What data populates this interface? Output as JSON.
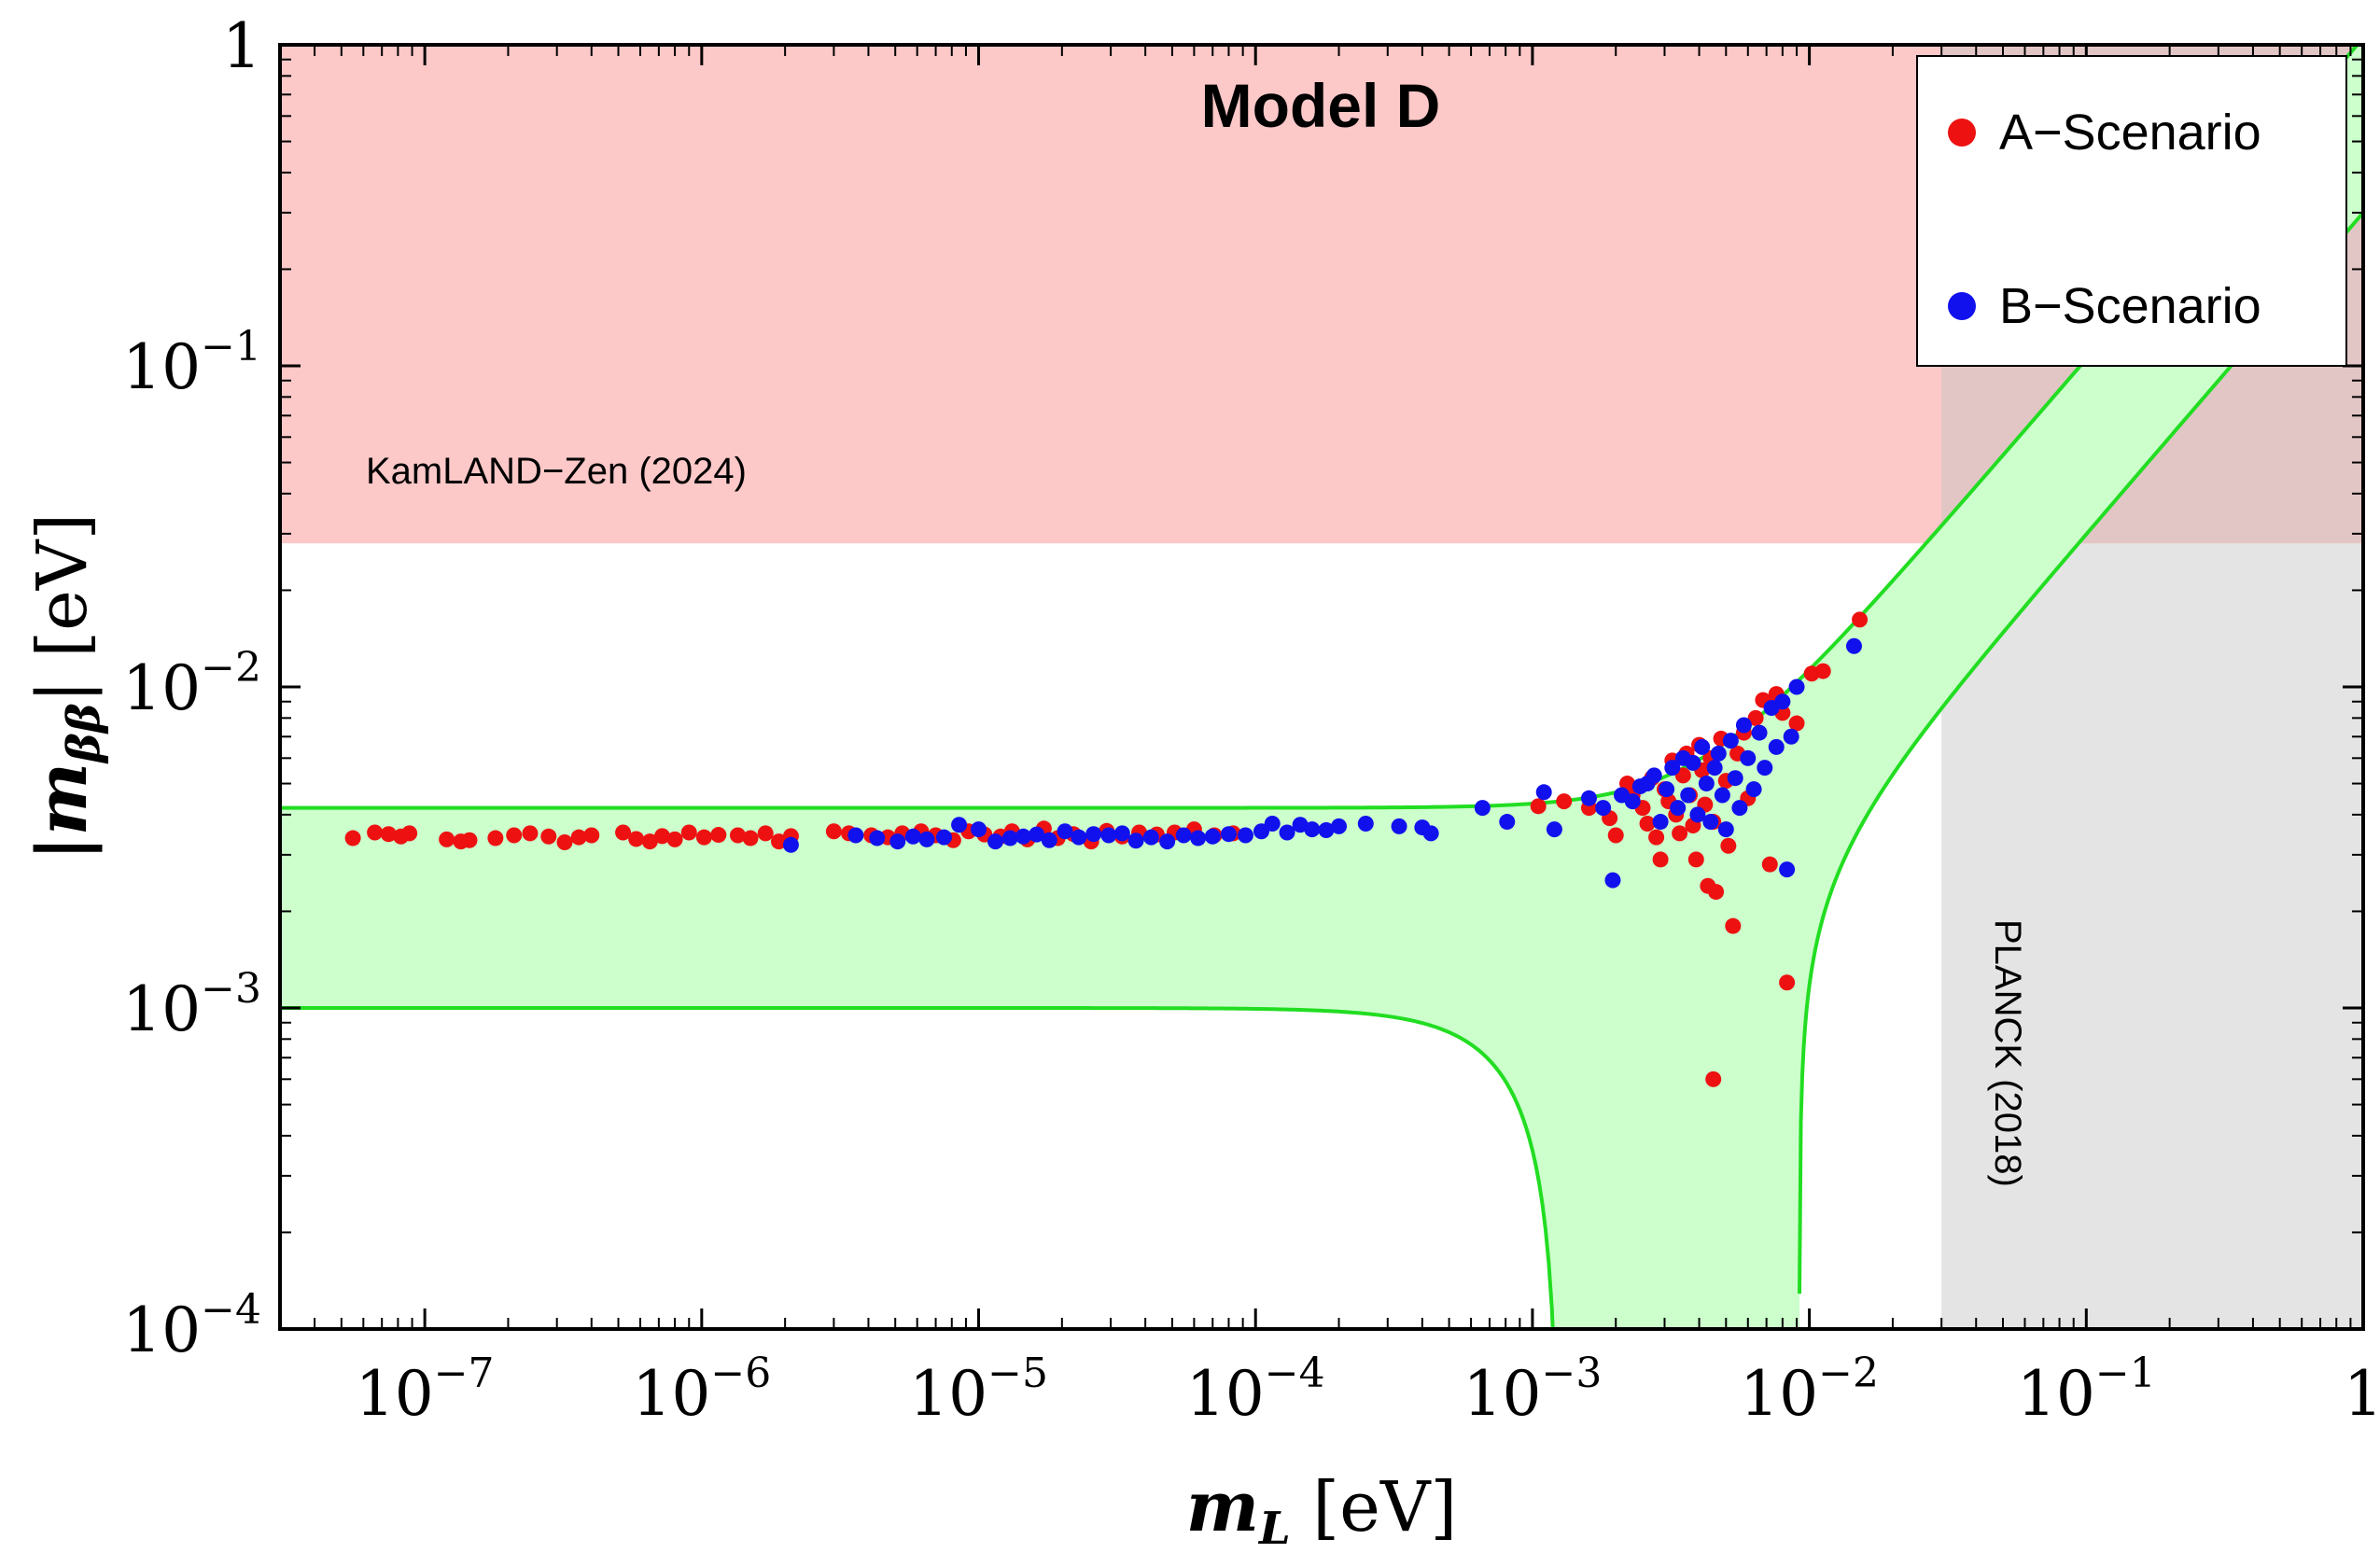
{
  "chart_data": {
    "type": "scatter",
    "title": "Model D",
    "xlabel": {
      "symbol": "m",
      "subscript": "L",
      "unit": "[eV]"
    },
    "ylabel": {
      "symbol": "|m",
      "subscript": "ββ",
      "close": "|",
      "unit": "[eV]"
    },
    "xscale": "log",
    "yscale": "log",
    "xlim": [
      3e-08,
      1
    ],
    "ylim": [
      0.0001,
      1
    ],
    "x_ticks": [
      {
        "value": 1e-07,
        "base": "10",
        "exp": "−7"
      },
      {
        "value": 1e-06,
        "base": "10",
        "exp": "−6"
      },
      {
        "value": 1e-05,
        "base": "10",
        "exp": "−5"
      },
      {
        "value": 0.0001,
        "base": "10",
        "exp": "−4"
      },
      {
        "value": 0.001,
        "base": "10",
        "exp": "−3"
      },
      {
        "value": 0.01,
        "base": "10",
        "exp": "−2"
      },
      {
        "value": 0.1,
        "base": "10",
        "exp": "−1"
      },
      {
        "value": 1,
        "base": "1",
        "exp": ""
      }
    ],
    "y_ticks": [
      {
        "value": 0.0001,
        "base": "10",
        "exp": "−4"
      },
      {
        "value": 0.001,
        "base": "10",
        "exp": "−3"
      },
      {
        "value": 0.01,
        "base": "10",
        "exp": "−2"
      },
      {
        "value": 0.1,
        "base": "10",
        "exp": "−1"
      },
      {
        "value": 1,
        "base": "1",
        "exp": ""
      }
    ],
    "excluded_regions": [
      {
        "name": "KamLAND−Zen (2024)",
        "type": "ymin",
        "value": 0.028,
        "color": "#fcc8c8",
        "label_at": [
          1e-07,
          0.045
        ]
      },
      {
        "name": "PLANCK (2018)",
        "type": "xmin",
        "value": 0.03,
        "color": "#c4c4c4",
        "label_at": [
          0.06,
          0.001
        ]
      }
    ],
    "allowed_band": {
      "description": "Neutrinoless double beta decay allowed region (inverted-like/normal band)",
      "upper": {
        "m0": 0.0042,
        "a": 1.0
      },
      "lower": {
        "m0": 0.001,
        "a": 1.0,
        "zero_at": 0.0042,
        "a2": 0.27
      },
      "fill": "#ccffcc",
      "stroke": "#22dd22"
    },
    "series": [
      {
        "name": "A−Scenario",
        "color": "#ee1111",
        "points": [
          [
            5.5e-08,
            0.00338
          ],
          [
            6.6e-08,
            0.00352
          ],
          [
            7.4e-08,
            0.00348
          ],
          [
            8.2e-08,
            0.00342
          ],
          [
            8.8e-08,
            0.0035
          ],
          [
            1.2e-07,
            0.00335
          ],
          [
            1.35e-07,
            0.0033
          ],
          [
            1.45e-07,
            0.00333
          ],
          [
            1.8e-07,
            0.00338
          ],
          [
            2.1e-07,
            0.00345
          ],
          [
            2.4e-07,
            0.0035
          ],
          [
            2.8e-07,
            0.00342
          ],
          [
            3.2e-07,
            0.00328
          ],
          [
            3.6e-07,
            0.0034
          ],
          [
            4e-07,
            0.00345
          ],
          [
            5.2e-07,
            0.00352
          ],
          [
            5.8e-07,
            0.00336
          ],
          [
            6.5e-07,
            0.0033
          ],
          [
            7.2e-07,
            0.00343
          ],
          [
            8e-07,
            0.00335
          ],
          [
            9e-07,
            0.00352
          ],
          [
            1.02e-06,
            0.0034
          ],
          [
            1.15e-06,
            0.00346
          ],
          [
            1.35e-06,
            0.00345
          ],
          [
            1.5e-06,
            0.00338
          ],
          [
            1.7e-06,
            0.0035
          ],
          [
            1.9e-06,
            0.0033
          ],
          [
            2.1e-06,
            0.00343
          ],
          [
            3e-06,
            0.00355
          ],
          [
            3.4e-06,
            0.0035
          ],
          [
            4.1e-06,
            0.00345
          ],
          [
            4.7e-06,
            0.0034
          ],
          [
            5.3e-06,
            0.0035
          ],
          [
            6.2e-06,
            0.00355
          ],
          [
            7e-06,
            0.00345
          ],
          [
            8.1e-06,
            0.00333
          ],
          [
            9.2e-06,
            0.00355
          ],
          [
            1.05e-05,
            0.00347
          ],
          [
            1.2e-05,
            0.00342
          ],
          [
            1.32e-05,
            0.00355
          ],
          [
            1.5e-05,
            0.00335
          ],
          [
            1.72e-05,
            0.00362
          ],
          [
            1.93e-05,
            0.00338
          ],
          [
            2.2e-05,
            0.00348
          ],
          [
            2.55e-05,
            0.0033
          ],
          [
            2.9e-05,
            0.00356
          ],
          [
            3.3e-05,
            0.00342
          ],
          [
            3.8e-05,
            0.00352
          ],
          [
            4.4e-05,
            0.00347
          ],
          [
            5.1e-05,
            0.00352
          ],
          [
            6e-05,
            0.0036
          ],
          [
            7.1e-05,
            0.00345
          ],
          [
            8.3e-05,
            0.0035
          ],
          [
            0.00105,
            0.00425
          ],
          [
            0.0013,
            0.0044
          ],
          [
            0.0016,
            0.0042
          ],
          [
            0.0019,
            0.0039
          ],
          [
            0.002,
            0.00345
          ],
          [
            0.0022,
            0.005
          ],
          [
            0.0023,
            0.0046
          ],
          [
            0.0025,
            0.0042
          ],
          [
            0.0026,
            0.00375
          ],
          [
            0.0027,
            0.0052
          ],
          [
            0.0028,
            0.0034
          ],
          [
            0.0029,
            0.0029
          ],
          [
            0.003,
            0.0048
          ],
          [
            0.0031,
            0.0044
          ],
          [
            0.0032,
            0.0059
          ],
          [
            0.0033,
            0.004
          ],
          [
            0.0034,
            0.0035
          ],
          [
            0.0035,
            0.0053
          ],
          [
            0.0036,
            0.0062
          ],
          [
            0.0037,
            0.0046
          ],
          [
            0.0038,
            0.0037
          ],
          [
            0.0039,
            0.0029
          ],
          [
            0.004,
            0.0066
          ],
          [
            0.0041,
            0.0055
          ],
          [
            0.0042,
            0.0043
          ],
          [
            0.0043,
            0.0024
          ],
          [
            0.0044,
            0.006
          ],
          [
            0.0045,
            0.0038
          ],
          [
            0.0046,
            0.0023
          ],
          [
            0.0048,
            0.0069
          ],
          [
            0.005,
            0.0051
          ],
          [
            0.0051,
            0.0032
          ],
          [
            0.0053,
            0.0018
          ],
          [
            0.0055,
            0.0062
          ],
          [
            0.0058,
            0.0072
          ],
          [
            0.006,
            0.0045
          ],
          [
            0.0064,
            0.008
          ],
          [
            0.0068,
            0.0091
          ],
          [
            0.0072,
            0.0028
          ],
          [
            0.0076,
            0.0095
          ],
          [
            0.008,
            0.0083
          ],
          [
            0.0083,
            0.0012
          ],
          [
            0.009,
            0.0077
          ],
          [
            0.0102,
            0.011
          ],
          [
            0.0112,
            0.0112
          ],
          [
            0.0152,
            0.0162
          ],
          [
            0.0045,
            0.0006
          ]
        ]
      },
      {
        "name": "B−Scenario",
        "color": "#1111ee",
        "points": [
          [
            2.1e-06,
            0.00322
          ],
          [
            3.6e-06,
            0.00345
          ],
          [
            4.3e-06,
            0.00338
          ],
          [
            5.1e-06,
            0.0033
          ],
          [
            5.8e-06,
            0.00342
          ],
          [
            6.5e-06,
            0.00335
          ],
          [
            7.5e-06,
            0.0034
          ],
          [
            8.5e-06,
            0.00372
          ],
          [
            1e-05,
            0.0036
          ],
          [
            1.15e-05,
            0.0033
          ],
          [
            1.3e-05,
            0.00338
          ],
          [
            1.45e-05,
            0.00342
          ],
          [
            1.62e-05,
            0.00347
          ],
          [
            1.8e-05,
            0.00333
          ],
          [
            2.05e-05,
            0.00355
          ],
          [
            2.3e-05,
            0.0034
          ],
          [
            2.6e-05,
            0.00348
          ],
          [
            2.95e-05,
            0.00345
          ],
          [
            3.3e-05,
            0.0035
          ],
          [
            3.7e-05,
            0.00332
          ],
          [
            4.2e-05,
            0.0034
          ],
          [
            4.8e-05,
            0.0033
          ],
          [
            5.5e-05,
            0.00345
          ],
          [
            6.2e-05,
            0.00338
          ],
          [
            7e-05,
            0.00342
          ],
          [
            8e-05,
            0.00348
          ],
          [
            9.2e-05,
            0.00345
          ],
          [
            0.000105,
            0.00355
          ],
          [
            0.000115,
            0.00375
          ],
          [
            0.00013,
            0.00352
          ],
          [
            0.000145,
            0.00372
          ],
          [
            0.00016,
            0.0036
          ],
          [
            0.00018,
            0.00358
          ],
          [
            0.0002,
            0.00368
          ],
          [
            0.00025,
            0.00375
          ],
          [
            0.00033,
            0.00368
          ],
          [
            0.0004,
            0.00365
          ],
          [
            0.00043,
            0.0035
          ],
          [
            0.00066,
            0.0042
          ],
          [
            0.00081,
            0.0038
          ],
          [
            0.0011,
            0.0047
          ],
          [
            0.0012,
            0.0036
          ],
          [
            0.0016,
            0.0045
          ],
          [
            0.0018,
            0.0042
          ],
          [
            0.00195,
            0.0025
          ],
          [
            0.0021,
            0.0046
          ],
          [
            0.0023,
            0.0044
          ],
          [
            0.00245,
            0.0049
          ],
          [
            0.0026,
            0.005
          ],
          [
            0.00275,
            0.0053
          ],
          [
            0.0029,
            0.0038
          ],
          [
            0.00305,
            0.0048
          ],
          [
            0.0032,
            0.0056
          ],
          [
            0.00335,
            0.0042
          ],
          [
            0.0035,
            0.006
          ],
          [
            0.00365,
            0.0046
          ],
          [
            0.0038,
            0.0058
          ],
          [
            0.00395,
            0.004
          ],
          [
            0.0041,
            0.0065
          ],
          [
            0.00425,
            0.005
          ],
          [
            0.0044,
            0.0038
          ],
          [
            0.00455,
            0.0056
          ],
          [
            0.0047,
            0.0062
          ],
          [
            0.00485,
            0.0046
          ],
          [
            0.005,
            0.0036
          ],
          [
            0.0052,
            0.0068
          ],
          [
            0.0054,
            0.0052
          ],
          [
            0.0056,
            0.0042
          ],
          [
            0.0058,
            0.0076
          ],
          [
            0.006,
            0.006
          ],
          [
            0.0063,
            0.0048
          ],
          [
            0.0066,
            0.0072
          ],
          [
            0.0069,
            0.0056
          ],
          [
            0.0073,
            0.0086
          ],
          [
            0.0076,
            0.0065
          ],
          [
            0.008,
            0.009
          ],
          [
            0.0083,
            0.0027
          ],
          [
            0.0086,
            0.007
          ],
          [
            0.009,
            0.01
          ],
          [
            0.0145,
            0.0134
          ]
        ]
      }
    ],
    "legend": {
      "position": "top-right"
    }
  }
}
